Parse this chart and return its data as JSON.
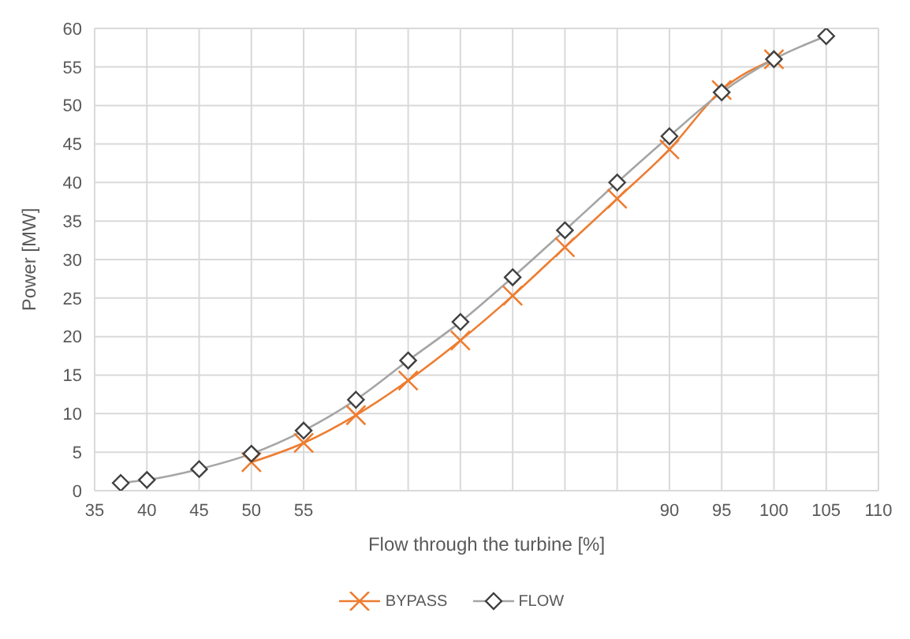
{
  "chart_data": {
    "type": "line",
    "xlabel": "Flow through the turbine [%]",
    "ylabel": "Power [MW]",
    "xlim": [
      35,
      110
    ],
    "xticks": [
      35,
      40,
      45,
      50,
      55,
      {
        "value": 60,
        "label": null
      },
      {
        "value": 65,
        "label": null
      },
      {
        "value": 70,
        "label": null
      },
      {
        "value": 75,
        "label": null
      },
      {
        "value": 80,
        "label": null
      },
      {
        "value": 85,
        "label": null
      },
      {
        "value": 90,
        "label": "90"
      },
      95,
      100,
      105,
      110
    ],
    "ylim": [
      0,
      60
    ],
    "yticks": [
      0,
      5,
      10,
      15,
      20,
      25,
      30,
      35,
      40,
      45,
      50,
      55,
      60
    ],
    "grid": true,
    "legend": "bottom",
    "line_style": "solid",
    "series": [
      {
        "name": "BYPASS",
        "color": "#ed7d31",
        "marker": "cross",
        "x": [
          50,
          55,
          60,
          65,
          70,
          75,
          80,
          85,
          90,
          95,
          100
        ],
        "values": [
          3.7,
          6.2,
          9.8,
          14.3,
          19.5,
          25.3,
          31.6,
          37.9,
          44.3,
          52.0,
          56.0
        ]
      },
      {
        "name": "FLOW",
        "color": "#a5a5a5",
        "marker": "diamond",
        "x": [
          37.5,
          40,
          45,
          50,
          55,
          60,
          65,
          70,
          75,
          80,
          85,
          90,
          95,
          100,
          105
        ],
        "values": [
          1.0,
          1.4,
          2.8,
          4.8,
          7.8,
          11.8,
          16.9,
          21.9,
          27.7,
          33.8,
          40.0,
          46.0,
          51.7,
          56.0,
          59.0
        ]
      }
    ]
  }
}
